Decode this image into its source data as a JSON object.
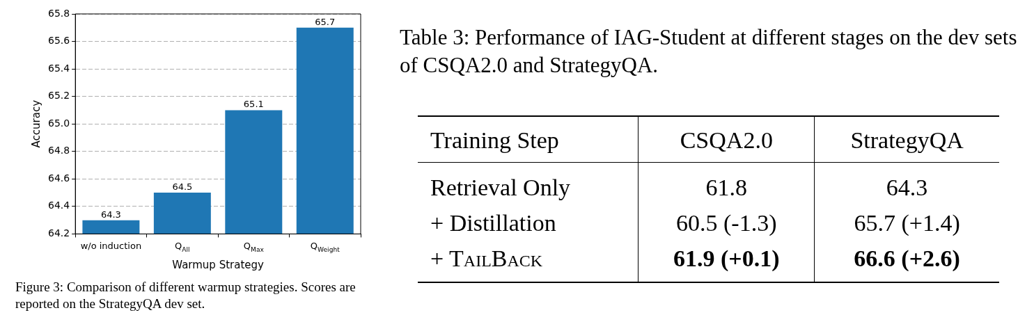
{
  "chart_data": [
    {
      "type": "bar",
      "xlabel": "Warmup Strategy",
      "ylabel": "Accuracy",
      "categories": [
        "w/o induction",
        "Q$_{All}$",
        "Q$_{Max}$",
        "Q$_{Weight}$"
      ],
      "values": [
        64.3,
        64.5,
        65.1,
        65.7
      ],
      "color": "#1f77b4",
      "ylim": [
        64.2,
        65.8
      ],
      "yticks": [
        64.2,
        64.4,
        64.6,
        64.8,
        {
          "value": 65,
          "label": "65.0"
        },
        65.2,
        65.4,
        65.6,
        65.8
      ],
      "grid": "y",
      "data_labels": true,
      "annotations": [
        "Figure 3: Comparison of different warmup strategies. Scores are reported on the StrategyQA dev set."
      ]
    },
    {
      "type": "other",
      "title": "Table 3: Performance of IAG-Student at different stages on the dev sets of CSQA2.0 and StrategyQA.",
      "annotations": [
        "Training Step",
        "CSQA2.0",
        "StrategyQA",
        "Retrieval Only",
        "61.8",
        "64.3",
        "+ Distillation",
        "60.5 (-1.3)",
        "65.7 (+1.4)",
        "+ TailBack",
        "61.9 (+0.1)",
        "66.6 (+2.6)"
      ]
    }
  ]
}
